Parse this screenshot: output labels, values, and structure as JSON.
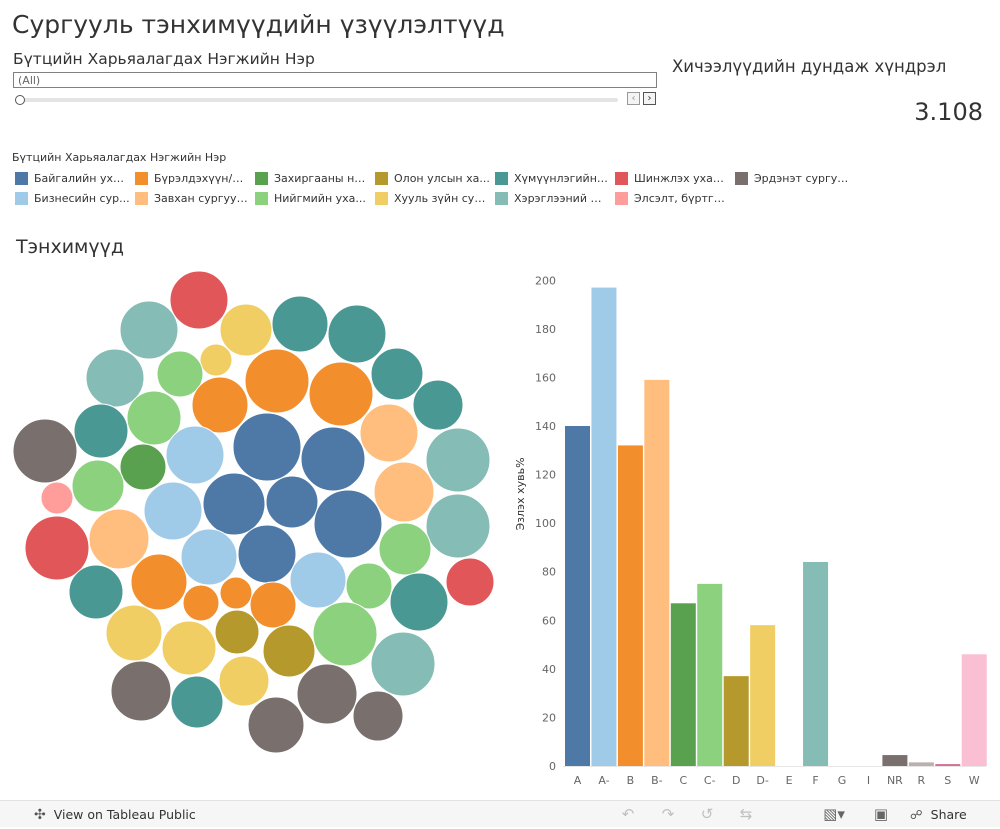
{
  "header": {
    "title": "Сургууль тэнхимүүдийн үзүүлэлтүүд",
    "filter_label": "Бүтцийн Харьяалагдах Нэгжийн Нэр",
    "filter_value": "(All)"
  },
  "kpi": {
    "label": "Хичээлүүдийн дундаж хүндрэл",
    "value": "3.108"
  },
  "legend": {
    "title": "Бүтцийн Харьяалагдах Нэгжийн Нэр",
    "items": [
      {
        "label": "Байгалийн уха...",
        "color": "#4e79a7"
      },
      {
        "label": "Бүрэлдэхүүн/С...",
        "color": "#f28e2b"
      },
      {
        "label": "Захиргааны нэ...",
        "color": "#59a14f"
      },
      {
        "label": "Олон улсын ха...",
        "color": "#b6992d"
      },
      {
        "label": "Хүмүүнлэгийн ...",
        "color": "#499894"
      },
      {
        "label": "Шинжлэх ухаа...",
        "color": "#e15759"
      },
      {
        "label": "Эрдэнэт сургуу...",
        "color": "#79706e"
      },
      {
        "label": "Бизнесийн сур...",
        "color": "#a0cbe8"
      },
      {
        "label": "Завхан сургууль",
        "color": "#ffbe7d"
      },
      {
        "label": "Нийгмийн уха...",
        "color": "#8cd17d"
      },
      {
        "label": "Хууль зүйн сур...",
        "color": "#f1ce63"
      },
      {
        "label": "Хэрэглээний ш...",
        "color": "#86bcb6"
      },
      {
        "label": "Элсэлт, бүртгэ...",
        "color": "#ff9d9a"
      }
    ]
  },
  "bubble_chart": {
    "title": "Тэнхимүүд"
  },
  "chart_data": {
    "type": "bar",
    "ylabel": "Эзлэх хувь%",
    "xlabel": "",
    "ylim": [
      0,
      210
    ],
    "y_ticks": [
      0,
      20,
      40,
      60,
      80,
      100,
      120,
      140,
      160,
      180,
      200
    ],
    "grid": false,
    "categories": [
      "A",
      "A-",
      "B",
      "B-",
      "C",
      "C-",
      "D",
      "D-",
      "E",
      "F",
      "G",
      "I",
      "NR",
      "R",
      "S",
      "W"
    ],
    "values": [
      140,
      197,
      132,
      159,
      67,
      75,
      37,
      58,
      0,
      84,
      0,
      0,
      4.5,
      1.5,
      0.8,
      46
    ],
    "colors": [
      "#4e79a7",
      "#a0cbe8",
      "#f28e2b",
      "#ffbe7d",
      "#59a14f",
      "#8cd17d",
      "#b6992d",
      "#f1ce63",
      "#499894",
      "#86bcb6",
      "#e15759",
      "#ff9d9a",
      "#79706e",
      "#bab0ac",
      "#d37295",
      "#fabfd2"
    ]
  },
  "toolbar": {
    "view_label": "View on Tableau Public",
    "share_label": "Share",
    "icons": {
      "view": "tableau-logo-icon",
      "undo": "undo-icon",
      "redo": "redo-icon",
      "revert": "revert-icon",
      "refresh": "refresh-icon",
      "download": "download-icon",
      "fullscreen": "fullscreen-icon",
      "share": "share-icon"
    }
  }
}
